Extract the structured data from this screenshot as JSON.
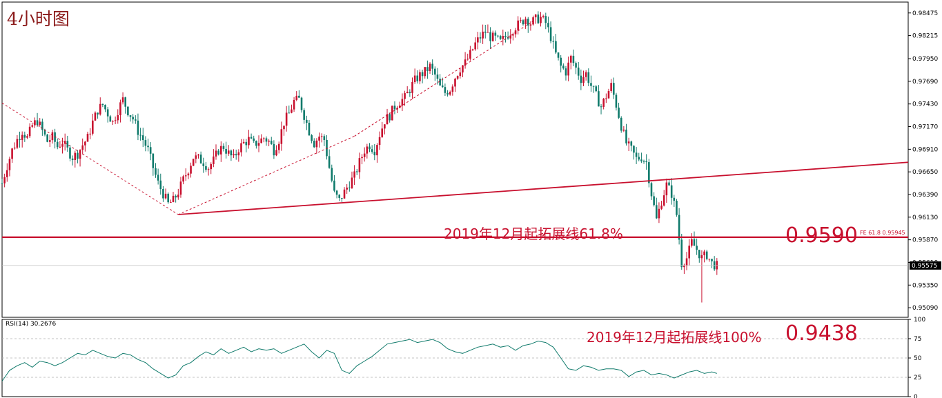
{
  "title": "4小时图",
  "chart_data": [
    {
      "type": "candlestick",
      "title": "4小时图",
      "ylim": [
        0.9498,
        0.986
      ],
      "yticks": [
        "0.98475",
        "0.98215",
        "0.97950",
        "0.97690",
        "0.97430",
        "0.97170",
        "0.96910",
        "0.96650",
        "0.96390",
        "0.96130",
        "0.95870",
        "0.95610",
        "0.95350",
        "0.95090"
      ],
      "yticks_values": [
        0.98475,
        0.98215,
        0.9795,
        0.9769,
        0.9743,
        0.9717,
        0.9691,
        0.9665,
        0.9639,
        0.9613,
        0.9587,
        0.9561,
        0.9535,
        0.9509
      ],
      "current_price": "0.95575",
      "current_price_value": 0.95575,
      "close_path": [
        [
          0,
          0.9652
        ],
        [
          4,
          0.9672
        ],
        [
          8,
          0.969
        ],
        [
          12,
          0.9702
        ],
        [
          16,
          0.9712
        ],
        [
          20,
          0.9704
        ],
        [
          24,
          0.9718
        ],
        [
          28,
          0.9724
        ],
        [
          32,
          0.9712
        ],
        [
          36,
          0.97
        ],
        [
          40,
          0.9705
        ],
        [
          44,
          0.9694
        ],
        [
          48,
          0.97
        ],
        [
          52,
          0.969
        ],
        [
          56,
          0.9682
        ],
        [
          60,
          0.9686
        ],
        [
          64,
          0.9696
        ],
        [
          68,
          0.9704
        ],
        [
          72,
          0.9722
        ],
        [
          76,
          0.9736
        ],
        [
          80,
          0.9742
        ],
        [
          84,
          0.9732
        ],
        [
          88,
          0.9722
        ],
        [
          92,
          0.9736
        ],
        [
          96,
          0.9748
        ],
        [
          100,
          0.9735
        ],
        [
          104,
          0.9726
        ],
        [
          108,
          0.9712
        ],
        [
          112,
          0.9702
        ],
        [
          116,
          0.969
        ],
        [
          120,
          0.967
        ],
        [
          124,
          0.9652
        ],
        [
          128,
          0.964
        ],
        [
          132,
          0.9628
        ],
        [
          136,
          0.9632
        ],
        [
          140,
          0.9642
        ],
        [
          144,
          0.9656
        ],
        [
          148,
          0.9668
        ],
        [
          152,
          0.9682
        ],
        [
          156,
          0.968
        ],
        [
          160,
          0.9676
        ],
        [
          164,
          0.967
        ],
        [
          168,
          0.9678
        ],
        [
          172,
          0.969
        ],
        [
          176,
          0.9694
        ],
        [
          180,
          0.9686
        ],
        [
          184,
          0.968
        ],
        [
          188,
          0.9692
        ],
        [
          192,
          0.9698
        ],
        [
          196,
          0.9702
        ],
        [
          200,
          0.9696
        ],
        [
          204,
          0.97
        ],
        [
          208,
          0.9704
        ],
        [
          212,
          0.97
        ],
        [
          216,
          0.969
        ],
        [
          220,
          0.9702
        ],
        [
          224,
          0.9722
        ],
        [
          228,
          0.9732
        ],
        [
          232,
          0.9746
        ],
        [
          236,
          0.9748
        ],
        [
          240,
          0.973
        ],
        [
          244,
          0.9712
        ],
        [
          248,
          0.9698
        ],
        [
          252,
          0.9706
        ],
        [
          256,
          0.9702
        ],
        [
          260,
          0.967
        ],
        [
          264,
          0.964
        ],
        [
          268,
          0.9632
        ],
        [
          272,
          0.9642
        ],
        [
          276,
          0.9652
        ],
        [
          280,
          0.966
        ],
        [
          284,
          0.9676
        ],
        [
          288,
          0.969
        ],
        [
          292,
          0.9696
        ],
        [
          296,
          0.969
        ],
        [
          300,
          0.9708
        ],
        [
          304,
          0.9724
        ],
        [
          308,
          0.973
        ],
        [
          312,
          0.974
        ],
        [
          316,
          0.9746
        ],
        [
          320,
          0.975
        ],
        [
          324,
          0.976
        ],
        [
          328,
          0.977
        ],
        [
          332,
          0.9776
        ],
        [
          336,
          0.978
        ],
        [
          340,
          0.9786
        ],
        [
          344,
          0.9776
        ],
        [
          348,
          0.9762
        ],
        [
          352,
          0.9756
        ],
        [
          356,
          0.976
        ],
        [
          360,
          0.9774
        ],
        [
          364,
          0.9784
        ],
        [
          368,
          0.979
        ],
        [
          372,
          0.98
        ],
        [
          376,
          0.9812
        ],
        [
          380,
          0.982
        ],
        [
          384,
          0.9826
        ],
        [
          388,
          0.982
        ],
        [
          392,
          0.9818
        ],
        [
          396,
          0.9814
        ],
        [
          400,
          0.982
        ],
        [
          404,
          0.9826
        ],
        [
          408,
          0.9832
        ],
        [
          412,
          0.9836
        ],
        [
          416,
          0.9842
        ],
        [
          420,
          0.9836
        ],
        [
          424,
          0.984
        ],
        [
          428,
          0.9842
        ],
        [
          432,
          0.9836
        ],
        [
          436,
          0.982
        ],
        [
          440,
          0.98
        ],
        [
          444,
          0.9786
        ],
        [
          448,
          0.978
        ],
        [
          452,
          0.9796
        ],
        [
          456,
          0.9784
        ],
        [
          460,
          0.9772
        ],
        [
          464,
          0.9778
        ],
        [
          468,
          0.9764
        ],
        [
          472,
          0.9752
        ],
        [
          476,
          0.974
        ],
        [
          480,
          0.9752
        ],
        [
          484,
          0.9764
        ],
        [
          488,
          0.9742
        ],
        [
          492,
          0.9718
        ],
        [
          496,
          0.9698
        ],
        [
          500,
          0.969
        ],
        [
          504,
          0.968
        ],
        [
          508,
          0.9682
        ],
        [
          512,
          0.9676
        ],
        [
          516,
          0.964
        ],
        [
          520,
          0.961
        ],
        [
          524,
          0.9632
        ],
        [
          528,
          0.965
        ],
        [
          532,
          0.964
        ],
        [
          536,
          0.9616
        ],
        [
          540,
          0.956
        ],
        [
          544,
          0.9566
        ],
        [
          548,
          0.9584
        ],
        [
          552,
          0.9576
        ],
        [
          556,
          0.9566
        ],
        [
          560,
          0.957
        ],
        [
          564,
          0.956
        ],
        [
          568,
          0.9557
        ]
      ],
      "lines": [
        {
          "type": "trendline",
          "style": "solid",
          "points": [
            [
              140,
              0.9616
            ],
            [
              720,
              0.9676
            ]
          ]
        },
        {
          "type": "horizontal",
          "value": 0.959
        },
        {
          "type": "dashed",
          "points": [
            [
              0,
              0.9744
            ],
            [
              140,
              0.9616
            ]
          ]
        },
        {
          "type": "dashed",
          "points": [
            [
              140,
              0.9616
            ],
            [
              280,
              0.9706
            ]
          ]
        },
        {
          "type": "dashed",
          "points": [
            [
              280,
              0.9706
            ],
            [
              424,
              0.984
            ]
          ]
        }
      ],
      "annotations": [
        {
          "text": "2019年12月起拓展线61.8%"
        },
        {
          "text": "0.9590"
        },
        {
          "text": "FE 61.8  0.95945"
        }
      ]
    },
    {
      "type": "line",
      "label": "RSI(14) 30.2676",
      "ylim": [
        0,
        100
      ],
      "yticks": [
        "100",
        "75",
        "50",
        "25",
        "0"
      ],
      "yticks_values": [
        100,
        75,
        50,
        25,
        0
      ],
      "levels": [
        75,
        50,
        25
      ],
      "series": [
        {
          "values": [
            [
              0,
              20
            ],
            [
              6,
              34
            ],
            [
              12,
              40
            ],
            [
              18,
              44
            ],
            [
              24,
              38
            ],
            [
              30,
              46
            ],
            [
              36,
              44
            ],
            [
              42,
              40
            ],
            [
              48,
              44
            ],
            [
              54,
              50
            ],
            [
              60,
              56
            ],
            [
              66,
              54
            ],
            [
              72,
              60
            ],
            [
              78,
              56
            ],
            [
              84,
              52
            ],
            [
              90,
              50
            ],
            [
              96,
              56
            ],
            [
              102,
              54
            ],
            [
              108,
              48
            ],
            [
              114,
              44
            ],
            [
              120,
              36
            ],
            [
              126,
              30
            ],
            [
              132,
              24
            ],
            [
              138,
              28
            ],
            [
              144,
              40
            ],
            [
              150,
              44
            ],
            [
              156,
              52
            ],
            [
              162,
              58
            ],
            [
              168,
              54
            ],
            [
              174,
              62
            ],
            [
              180,
              56
            ],
            [
              186,
              60
            ],
            [
              192,
              64
            ],
            [
              198,
              58
            ],
            [
              204,
              62
            ],
            [
              210,
              60
            ],
            [
              216,
              62
            ],
            [
              222,
              56
            ],
            [
              228,
              60
            ],
            [
              234,
              64
            ],
            [
              240,
              68
            ],
            [
              246,
              58
            ],
            [
              252,
              50
            ],
            [
              258,
              60
            ],
            [
              264,
              56
            ],
            [
              270,
              34
            ],
            [
              276,
              30
            ],
            [
              282,
              40
            ],
            [
              288,
              46
            ],
            [
              294,
              52
            ],
            [
              300,
              60
            ],
            [
              306,
              68
            ],
            [
              312,
              70
            ],
            [
              318,
              72
            ],
            [
              324,
              74
            ],
            [
              330,
              70
            ],
            [
              336,
              72
            ],
            [
              342,
              74
            ],
            [
              348,
              70
            ],
            [
              354,
              62
            ],
            [
              360,
              58
            ],
            [
              366,
              56
            ],
            [
              372,
              60
            ],
            [
              378,
              64
            ],
            [
              384,
              66
            ],
            [
              390,
              68
            ],
            [
              396,
              64
            ],
            [
              402,
              66
            ],
            [
              408,
              60
            ],
            [
              414,
              66
            ],
            [
              420,
              68
            ],
            [
              426,
              72
            ],
            [
              432,
              70
            ],
            [
              438,
              64
            ],
            [
              444,
              50
            ],
            [
              450,
              36
            ],
            [
              456,
              34
            ],
            [
              462,
              40
            ],
            [
              468,
              38
            ],
            [
              474,
              34
            ],
            [
              480,
              36
            ],
            [
              486,
              36
            ],
            [
              492,
              34
            ],
            [
              498,
              26
            ],
            [
              504,
              32
            ],
            [
              510,
              34
            ],
            [
              516,
              28
            ],
            [
              522,
              30
            ],
            [
              528,
              28
            ],
            [
              534,
              24
            ],
            [
              540,
              28
            ],
            [
              546,
              32
            ],
            [
              552,
              34
            ],
            [
              558,
              30
            ],
            [
              564,
              32
            ],
            [
              568,
              30
            ]
          ]
        }
      ],
      "annotations": [
        {
          "text": "2019年12月起拓展线100%"
        },
        {
          "text": "0.9438"
        }
      ]
    }
  ]
}
